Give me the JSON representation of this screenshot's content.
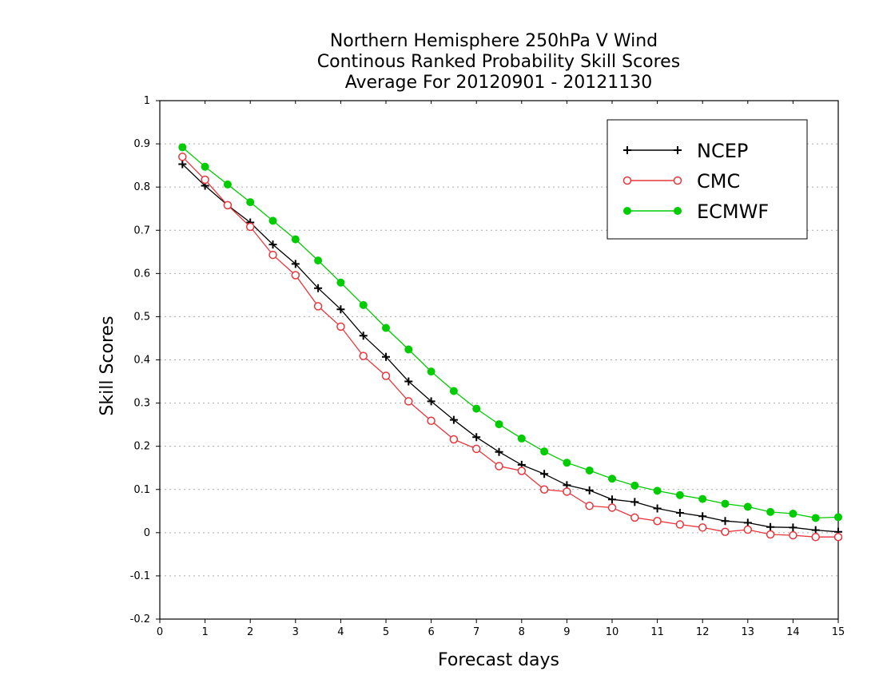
{
  "chart_data": {
    "type": "line",
    "title_lines": [
      "Northern Hemisphere 250hPa V Wind",
      "Continous Ranked Probability Skill Scores",
      "Average For 20120901 - 20121130"
    ],
    "xlabel": "Forecast days",
    "ylabel": "Skill Scores",
    "xlim": [
      0,
      15
    ],
    "ylim": [
      -0.2,
      1
    ],
    "xticks": [
      "0",
      "1",
      "2",
      "3",
      "4",
      "5",
      "6",
      "7",
      "8",
      "9",
      "10",
      "11",
      "12",
      "13",
      "14",
      "15"
    ],
    "yticks": [
      "-0.2",
      "-0.1",
      "0",
      "0.1",
      "0.2",
      "0.3",
      "0.4",
      "0.5",
      "0.6",
      "0.7",
      "0.8",
      "0.9",
      "1"
    ],
    "grid": "horizontal dotted",
    "legend_position": "top-right",
    "x": [
      0.5,
      1,
      1.5,
      2,
      2.5,
      3,
      3.5,
      4,
      4.5,
      5,
      5.5,
      6,
      6.5,
      7,
      7.5,
      8,
      8.5,
      9,
      9.5,
      10,
      10.5,
      11,
      11.5,
      12,
      12.5,
      13,
      13.5,
      14,
      14.5,
      15
    ],
    "series": [
      {
        "name": "NCEP",
        "color": "#000000",
        "marker": "plus",
        "values": [
          0.853,
          0.803,
          0.758,
          0.718,
          0.667,
          0.622,
          0.566,
          0.517,
          0.456,
          0.407,
          0.35,
          0.304,
          0.261,
          0.221,
          0.187,
          0.157,
          0.136,
          0.11,
          0.098,
          0.077,
          0.071,
          0.056,
          0.046,
          0.038,
          0.027,
          0.023,
          0.013,
          0.012,
          0.006,
          0.002
        ]
      },
      {
        "name": "CMC",
        "color": "#e8363b",
        "marker": "open-circle",
        "values": [
          0.87,
          0.817,
          0.758,
          0.708,
          0.643,
          0.596,
          0.524,
          0.477,
          0.409,
          0.363,
          0.304,
          0.259,
          0.216,
          0.194,
          0.154,
          0.143,
          0.1,
          0.095,
          0.062,
          0.058,
          0.035,
          0.027,
          0.019,
          0.012,
          0.002,
          0.007,
          -0.004,
          -0.006,
          -0.01,
          -0.01
        ]
      },
      {
        "name": "ECMWF",
        "color": "#00cc00",
        "marker": "filled-circle",
        "values": [
          0.892,
          0.847,
          0.806,
          0.765,
          0.722,
          0.679,
          0.63,
          0.579,
          0.527,
          0.474,
          0.424,
          0.373,
          0.328,
          0.287,
          0.251,
          0.218,
          0.188,
          0.162,
          0.144,
          0.125,
          0.109,
          0.097,
          0.087,
          0.078,
          0.067,
          0.06,
          0.048,
          0.044,
          0.034,
          0.036
        ]
      }
    ]
  }
}
